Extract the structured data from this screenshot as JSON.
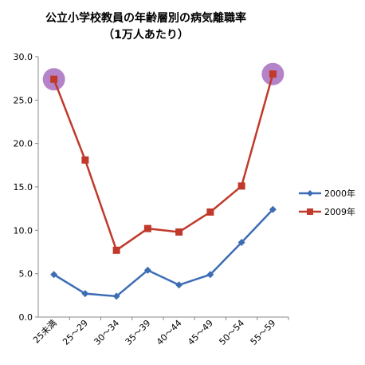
{
  "chart_data": {
    "type": "line",
    "title": "公立小学校教員の年齢層別の病気離職率",
    "subtitle": "（1万人あたり）",
    "categories": [
      "25未満",
      "25～29",
      "30～34",
      "35～39",
      "40～44",
      "45～49",
      "50～54",
      "55～59"
    ],
    "ylim": [
      0,
      30
    ],
    "yticks": [
      "0.0",
      "5.0",
      "10.0",
      "15.0",
      "20.0",
      "25.0",
      "30.0"
    ],
    "ytick_values": [
      0,
      5,
      10,
      15,
      20,
      25,
      30
    ],
    "grid": false,
    "legend_position": "right",
    "series": [
      {
        "name": "2000年",
        "color": "#3d6db5",
        "marker": "diamond",
        "values": [
          4.9,
          2.7,
          2.4,
          5.4,
          3.7,
          4.9,
          8.6,
          12.4
        ]
      },
      {
        "name": "2009年",
        "color": "#c0392b",
        "marker": "square",
        "values": [
          27.4,
          18.1,
          7.7,
          10.2,
          9.8,
          12.1,
          15.1,
          28.0
        ]
      }
    ],
    "highlight": {
      "color": "#9b59b6",
      "series_index": 1,
      "points": [
        0,
        7
      ]
    }
  }
}
